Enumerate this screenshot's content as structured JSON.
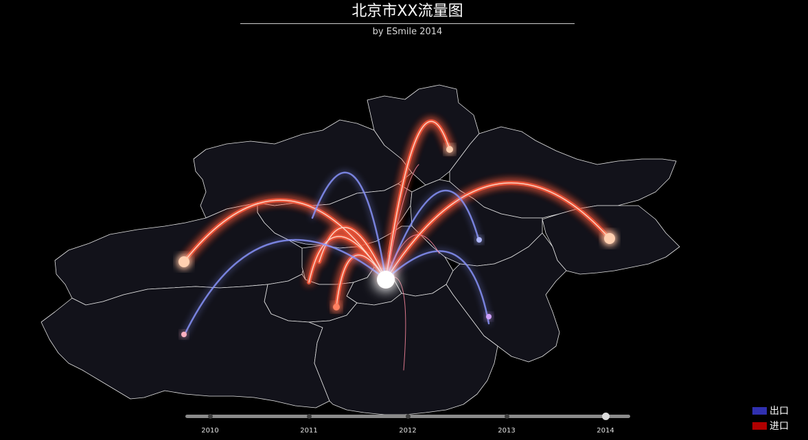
{
  "header": {
    "title": "北京市XX流量图",
    "subtitle": "by ESmile 2014"
  },
  "legend": {
    "items": [
      {
        "label": "出口",
        "color": "#3030b0"
      },
      {
        "label": "进口",
        "color": "#b00000"
      }
    ]
  },
  "timeline": {
    "years": [
      "2010",
      "2011",
      "2012",
      "2013",
      "2014"
    ],
    "selected": "2014"
  },
  "colors": {
    "background": "#000000",
    "region_fill": "#12121a",
    "region_stroke": "#e8e8e8",
    "export_flow": "#5a6bff",
    "import_flow": "#ff5030",
    "center_node": "#ffffff"
  }
}
